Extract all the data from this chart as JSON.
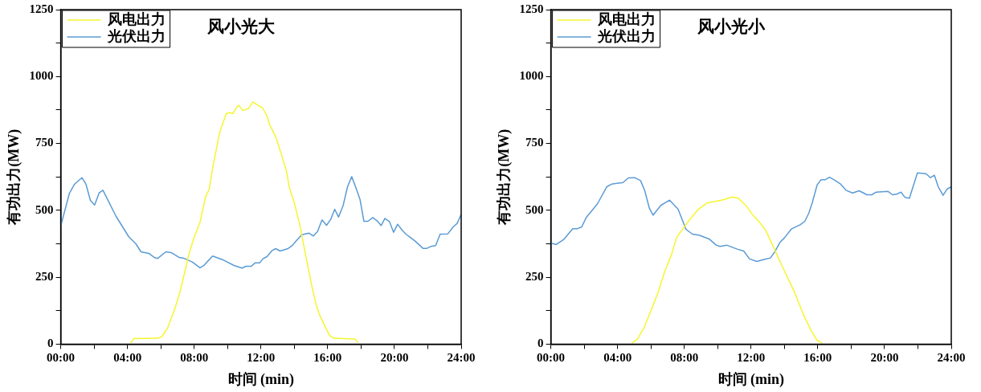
{
  "chart_data": [
    {
      "type": "line",
      "title": "风小光大",
      "xlabel": "时间 (min)",
      "ylabel": "有功出力(MW)",
      "xlim": [
        0,
        24
      ],
      "xticks": [
        {
          "value": 0,
          "label": "00:00"
        },
        {
          "value": 2,
          "label": null
        },
        {
          "value": 4,
          "label": "04:00"
        },
        {
          "value": 6,
          "label": null
        },
        {
          "value": 8,
          "label": "08:00"
        },
        {
          "value": 10,
          "label": null
        },
        {
          "value": 12,
          "label": "12:00"
        },
        {
          "value": 14,
          "label": null
        },
        {
          "value": 16,
          "label": "16:00"
        },
        {
          "value": 18,
          "label": null
        },
        {
          "value": 20,
          "label": "20:00"
        },
        {
          "value": 22,
          "label": null
        },
        {
          "value": 24,
          "label": "24:00"
        }
      ],
      "ylim": [
        0,
        1250
      ],
      "yticks": [
        0,
        {
          "value": 125,
          "label": null
        },
        250,
        {
          "value": 375,
          "label": null
        },
        500,
        {
          "value": 625,
          "label": null
        },
        750,
        {
          "value": 875,
          "label": null
        },
        1000,
        {
          "value": 1125,
          "label": null
        },
        1250
      ],
      "grid": false,
      "legend": "top left",
      "line_style": "solid",
      "marker": "none",
      "series": [
        {
          "name": "风电出力",
          "color": "#f5f530",
          "x": [
            4.18,
            4.39,
            5.83,
            6.07,
            6.38,
            6.78,
            7.09,
            7.41,
            7.72,
            8,
            8.35,
            8.67,
            8.9,
            9.14,
            9.53,
            9.92,
            10.13,
            10.32,
            10.52,
            10.67,
            10.91,
            11.26,
            11.52,
            11.81,
            12.09,
            12.36,
            12.51,
            12.91,
            13.22,
            13.54,
            13.69,
            13.98,
            14.33,
            14.56,
            14.8,
            15.03,
            15.27,
            15.5,
            15.77,
            16.1,
            16.37,
            17.63,
            17.83
          ],
          "values": [
            4,
            21,
            22,
            29,
            57,
            121,
            182,
            263,
            345,
            400,
            456,
            548,
            580,
            670,
            792,
            861,
            865,
            861,
            883,
            893,
            873,
            881,
            905,
            893,
            883,
            853,
            822,
            771,
            710,
            644,
            588,
            532,
            446,
            370,
            294,
            223,
            156,
            111,
            75,
            33,
            22,
            19,
            6
          ]
        },
        {
          "name": "光伏出力",
          "color": "#5b9bd5",
          "x": [
            0,
            0.52,
            0.83,
            1.27,
            1.51,
            1.78,
            2.03,
            2.3,
            2.53,
            3.32,
            4.07,
            4.5,
            4.81,
            5.28,
            5.6,
            5.8,
            6.3,
            6.62,
            7.09,
            7.33,
            7.88,
            8.35,
            8.58,
            9.1,
            9.76,
            10.39,
            10.86,
            11.1,
            11.42,
            11.65,
            11.93,
            12.12,
            12.36,
            12.67,
            12.88,
            13.15,
            13.62,
            13.85,
            14.17,
            14.45,
            14.87,
            15.14,
            15.39,
            15.66,
            15.93,
            16.18,
            16.42,
            16.65,
            16.92,
            17.19,
            17.44,
            17.7,
            17.94,
            18.17,
            18.41,
            18.7,
            18.96,
            19.2,
            19.43,
            19.7,
            19.95,
            20.19,
            20.46,
            20.69,
            21.24,
            21.71,
            21.95,
            22.18,
            22.47,
            22.74,
            23.2,
            23.52,
            23.76,
            24
          ],
          "values": [
            441,
            564,
            598,
            622,
            598,
            537,
            520,
            565,
            575,
            477,
            402,
            375,
            345,
            339,
            324,
            320,
            345,
            342,
            324,
            322,
            307,
            285,
            294,
            329,
            314,
            294,
            284,
            291,
            291,
            304,
            304,
            319,
            327,
            350,
            357,
            348,
            357,
            367,
            390,
            409,
            415,
            404,
            421,
            464,
            444,
            466,
            504,
            475,
            517,
            588,
            626,
            583,
            540,
            459,
            459,
            473,
            461,
            443,
            470,
            458,
            418,
            448,
            426,
            411,
            385,
            358,
            358,
            365,
            368,
            411,
            412,
            438,
            451,
            485
          ]
        }
      ]
    },
    {
      "type": "line",
      "title": "风小光小",
      "xlabel": "时间 (min)",
      "ylabel": "有功出力(MW)",
      "xlim": [
        0,
        24
      ],
      "xticks": [
        {
          "value": 0,
          "label": "00:00"
        },
        {
          "value": 2,
          "label": null
        },
        {
          "value": 4,
          "label": "04:00"
        },
        {
          "value": 6,
          "label": null
        },
        {
          "value": 8,
          "label": "08:00"
        },
        {
          "value": 10,
          "label": null
        },
        {
          "value": 12,
          "label": "12:00"
        },
        {
          "value": 14,
          "label": null
        },
        {
          "value": 16,
          "label": "16:00"
        },
        {
          "value": 18,
          "label": null
        },
        {
          "value": 20,
          "label": "20:00"
        },
        {
          "value": 22,
          "label": null
        },
        {
          "value": 24,
          "label": "24:00"
        }
      ],
      "ylim": [
        0,
        1250
      ],
      "yticks": [
        0,
        {
          "value": 125,
          "label": null
        },
        250,
        {
          "value": 375,
          "label": null
        },
        500,
        {
          "value": 625,
          "label": null
        },
        750,
        {
          "value": 875,
          "label": null
        },
        1000,
        {
          "value": 1125,
          "label": null
        },
        1250
      ],
      "grid": false,
      "legend": "top left",
      "line_style": "solid",
      "marker": "none",
      "series": [
        {
          "name": "风电出力",
          "color": "#f5f530",
          "x": [
            4.87,
            5.19,
            5.58,
            6.13,
            6.45,
            6.84,
            7.23,
            7.55,
            7.86,
            8.33,
            8.81,
            9.35,
            9.91,
            10.38,
            10.85,
            11.24,
            11.71,
            12.11,
            12.5,
            12.89,
            13.29,
            13.92,
            14.62,
            15.17,
            15.65,
            15.96,
            16.27
          ],
          "values": [
            4,
            19,
            60,
            146,
            197,
            273,
            334,
            400,
            426,
            466,
            502,
            527,
            534,
            540,
            550,
            545,
            517,
            482,
            456,
            424,
            370,
            284,
            192,
            106,
            45,
            14,
            4
          ]
        },
        {
          "name": "光伏出力",
          "color": "#5b9bd5",
          "x": [
            0,
            0.32,
            0.79,
            1.31,
            1.57,
            1.85,
            2.12,
            2.44,
            2.8,
            3.35,
            3.65,
            4.33,
            4.64,
            5.03,
            5.38,
            5.63,
            5.9,
            6.13,
            6.6,
            7.12,
            7.63,
            8.1,
            8.49,
            8.88,
            9.51,
            9.91,
            10.14,
            10.53,
            11.17,
            11.56,
            11.9,
            12.34,
            12.82,
            13.16,
            13.44,
            13.73,
            14,
            14.43,
            14.94,
            15.22,
            15.46,
            15.67,
            15.96,
            16.19,
            16.43,
            16.7,
            16.98,
            17.37,
            17.69,
            18.08,
            18.48,
            18.95,
            19.23,
            19.5,
            20.2,
            20.48,
            20.75,
            20.99,
            21.23,
            21.49,
            21.97,
            22.49,
            22.75,
            22.99,
            23.22,
            23.51,
            23.74,
            24
          ],
          "values": [
            378,
            372,
            392,
            431,
            431,
            438,
            473,
            497,
            525,
            588,
            598,
            604,
            621,
            622,
            611,
            573,
            509,
            482,
            519,
            538,
            504,
            429,
            411,
            407,
            392,
            370,
            365,
            370,
            355,
            348,
            319,
            309,
            317,
            322,
            347,
            380,
            397,
            431,
            446,
            459,
            489,
            529,
            595,
            614,
            614,
            624,
            614,
            598,
            575,
            565,
            573,
            558,
            558,
            568,
            571,
            558,
            561,
            568,
            548,
            545,
            640,
            637,
            622,
            631,
            588,
            556,
            579,
            588
          ]
        }
      ]
    }
  ]
}
